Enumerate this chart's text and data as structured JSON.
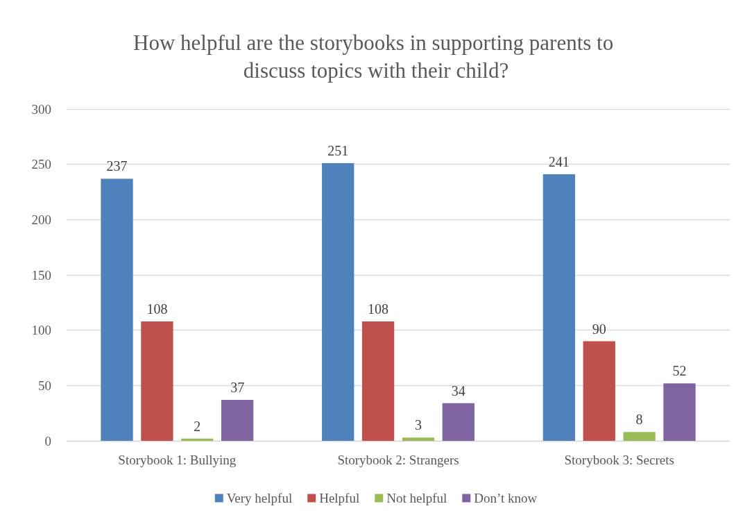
{
  "chart_data": {
    "type": "bar",
    "title": "How helpful are the storybooks in supporting parents to discuss topics with their child?",
    "categories": [
      "Storybook 1: Bullying",
      "Storybook 2: Strangers",
      "Storybook 3: Secrets"
    ],
    "series": [
      {
        "name": "Very helpful",
        "color": "#4f81bd",
        "values": [
          237,
          251,
          241
        ]
      },
      {
        "name": "Helpful",
        "color": "#c0504d",
        "values": [
          108,
          108,
          90
        ]
      },
      {
        "name": "Not helpful",
        "color": "#9bbb59",
        "values": [
          2,
          3,
          8
        ]
      },
      {
        "name": "Don’t know",
        "color": "#8064a2",
        "values": [
          37,
          34,
          52
        ]
      }
    ],
    "ylim": [
      0,
      300
    ],
    "yticks": [
      0,
      50,
      100,
      150,
      200,
      250,
      300
    ],
    "grid": "y",
    "legend": "bottom",
    "data_labels": true
  }
}
